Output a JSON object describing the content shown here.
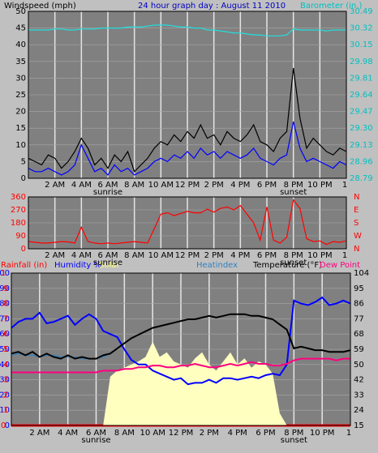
{
  "header": {
    "left_label": "Windspeed (mph)",
    "title": "24 hour graph day : August 11 2010",
    "right_label": "Barometer (in.)"
  },
  "colors": {
    "background": "#c0c0c0",
    "plot": "#808080",
    "grid": "#e6e6e6",
    "wind_axis": "#000000",
    "baro_axis": "#00c0c0",
    "barometer": "#20e0e0",
    "gust": "#000000",
    "wind": "#0000ff",
    "direction": "#ff0000",
    "rain": "#ff0000",
    "humidity": "#0000ff",
    "solar": "#ffffc0",
    "heatindex": "#3080c0",
    "temperature": "#000000",
    "dewpoint": "#ff0080",
    "title": "#0000c0"
  },
  "chart_data": [
    {
      "type": "line",
      "title": "24 hour graph day : August 11 2010",
      "left_axis": {
        "label": "Windspeed (mph)",
        "ticks": [
          "0",
          "5",
          "10",
          "15",
          "20",
          "25",
          "30",
          "35",
          "40",
          "45",
          "50"
        ],
        "ylim": [
          0,
          50
        ]
      },
      "right_axis": {
        "label": "Barometer (in.)",
        "ticks": [
          "28.79",
          "28.96",
          "29.13",
          "29.30",
          "29.47",
          "29.64",
          "29.81",
          "29.98",
          "30.15",
          "30.32",
          "30.49"
        ],
        "ylim": [
          28.79,
          30.49
        ]
      },
      "x_ticks": [
        "2 AM",
        "4 AM",
        "6 AM",
        "8 AM",
        "10 AM",
        "12 PM",
        "2 PM",
        "4 PM",
        "6 PM",
        "8 PM",
        "10 PM"
      ],
      "x_end_tick": "1",
      "sub_labels": [
        {
          "text": "sunrise",
          "hour": 6
        },
        {
          "text": "sunset",
          "hour": 20
        }
      ],
      "hours": [
        0,
        0.5,
        1,
        1.5,
        2,
        2.5,
        3,
        3.5,
        4,
        4.5,
        5,
        5.5,
        6,
        6.5,
        7,
        7.5,
        8,
        8.5,
        9,
        9.5,
        10,
        10.5,
        11,
        11.5,
        12,
        12.5,
        13,
        13.5,
        14,
        14.5,
        15,
        15.5,
        16,
        16.5,
        17,
        17.5,
        18,
        18.5,
        19,
        19.5,
        20,
        20.5,
        21,
        21.5,
        22,
        22.5,
        23,
        23.5,
        24
      ],
      "series": [
        {
          "key": "barometer",
          "axis": "right",
          "values": [
            30.3,
            30.3,
            30.3,
            30.3,
            30.31,
            30.31,
            30.3,
            30.3,
            30.31,
            30.31,
            30.31,
            30.32,
            30.32,
            30.32,
            30.32,
            30.33,
            30.33,
            30.33,
            30.34,
            30.35,
            30.35,
            30.35,
            30.34,
            30.33,
            30.33,
            30.32,
            30.32,
            30.3,
            30.3,
            30.29,
            30.28,
            30.27,
            30.27,
            30.26,
            30.25,
            30.25,
            30.24,
            30.24,
            30.24,
            30.25,
            30.31,
            30.3,
            30.3,
            30.3,
            30.3,
            30.29,
            30.3,
            30.3,
            30.3
          ]
        },
        {
          "key": "gust",
          "axis": "left",
          "values": [
            6,
            5,
            4,
            7,
            6,
            3,
            5,
            8,
            12,
            9,
            4,
            6,
            3,
            7,
            5,
            8,
            2,
            4,
            6,
            9,
            11,
            10,
            13,
            11,
            14,
            12,
            16,
            12,
            13,
            10,
            14,
            12,
            11,
            13,
            16,
            11,
            10,
            8,
            12,
            14,
            33,
            18,
            9,
            12,
            10,
            8,
            7,
            9,
            8
          ]
        },
        {
          "key": "wind",
          "axis": "left",
          "values": [
            3,
            2,
            2,
            3,
            2,
            1,
            2,
            4,
            10,
            6,
            2,
            3,
            1,
            4,
            2,
            3,
            1,
            2,
            3,
            5,
            6,
            5,
            7,
            6,
            8,
            6,
            9,
            7,
            8,
            6,
            8,
            7,
            6,
            7,
            9,
            6,
            5,
            4,
            6,
            7,
            17,
            9,
            5,
            6,
            5,
            4,
            3,
            5,
            4
          ]
        }
      ]
    },
    {
      "type": "line",
      "title": "",
      "left_axis": {
        "label": "",
        "ticks": [
          "0",
          "90",
          "180",
          "270",
          "360"
        ],
        "ylim": [
          0,
          360
        ]
      },
      "right_axis": {
        "label": "",
        "ticks": [
          "N",
          "W",
          "S",
          "E",
          "N"
        ]
      },
      "x_ticks": [
        "2 AM",
        "4 AM",
        "6 AM",
        "8 AM",
        "10 AM",
        "12 PM",
        "2 PM",
        "4 PM",
        "6 PM",
        "8 PM",
        "10 PM"
      ],
      "x_end_tick": "1",
      "sub_labels": [
        {
          "text": "sunrise",
          "hour": 6
        },
        {
          "text": "sunset",
          "hour": 20
        }
      ],
      "hours": [
        0,
        0.5,
        1,
        1.5,
        2,
        2.5,
        3,
        3.5,
        4,
        4.5,
        5,
        5.5,
        6,
        6.5,
        7,
        7.5,
        8,
        8.5,
        9,
        9.5,
        10,
        10.5,
        11,
        11.5,
        12,
        12.5,
        13,
        13.5,
        14,
        14.5,
        15,
        15.5,
        16,
        16.5,
        17,
        17.5,
        18,
        18.5,
        19,
        19.5,
        20,
        20.5,
        21,
        21.5,
        22,
        22.5,
        23,
        23.5,
        24
      ],
      "series": [
        {
          "key": "direction",
          "axis": "left",
          "values": [
            50,
            45,
            40,
            40,
            45,
            50,
            48,
            40,
            150,
            50,
            40,
            35,
            40,
            35,
            40,
            45,
            50,
            45,
            40,
            140,
            240,
            250,
            230,
            245,
            260,
            250,
            250,
            275,
            255,
            280,
            290,
            270,
            300,
            240,
            180,
            60,
            290,
            60,
            40,
            80,
            340,
            280,
            70,
            50,
            55,
            30,
            50,
            45,
            55
          ]
        }
      ]
    },
    {
      "type": "line",
      "title": "",
      "legend": [
        "Rainfall (in)",
        "Humidity %",
        "Solar",
        "Heatindex",
        "Temperature (°F)",
        "Dew Point"
      ],
      "left_axis": {
        "label": "Humidity %",
        "ticks": [
          "0",
          "10",
          "20",
          "30",
          "40",
          "50",
          "60",
          "70",
          "80",
          "90",
          "100"
        ],
        "ylim": [
          0,
          100
        ]
      },
      "rain_axis": {
        "label": "Rainfall (in)",
        "ticks": [
          "0",
          ".1",
          ".2",
          ".3",
          ".4",
          ".5",
          ".6",
          ".7",
          ".8",
          ".9",
          "1"
        ],
        "ylim": [
          0,
          1
        ]
      },
      "right_axis": {
        "label": "Temperature (°F)",
        "ticks": [
          "15",
          "24",
          "33",
          "42",
          "50",
          "59",
          "68",
          "77",
          "86",
          "95",
          "104"
        ],
        "ylim": [
          15,
          104
        ]
      },
      "x_ticks": [
        "2 AM",
        "4 AM",
        "6 AM",
        "8 AM",
        "10 AM",
        "12 PM",
        "2 PM",
        "4 PM",
        "6 PM",
        "8 PM",
        "10 PM"
      ],
      "x_end_tick": "1",
      "sub_labels": [
        {
          "text": "sunrise",
          "hour": 6
        },
        {
          "text": "sunset",
          "hour": 20
        }
      ],
      "hours": [
        0,
        0.5,
        1,
        1.5,
        2,
        2.5,
        3,
        3.5,
        4,
        4.5,
        5,
        5.5,
        6,
        6.5,
        7,
        7.5,
        8,
        8.5,
        9,
        9.5,
        10,
        10.5,
        11,
        11.5,
        12,
        12.5,
        13,
        13.5,
        14,
        14.5,
        15,
        15.5,
        16,
        16.5,
        17,
        17.5,
        18,
        18.5,
        19,
        19.5,
        20,
        20.5,
        21,
        21.5,
        22,
        22.5,
        23,
        23.5,
        24
      ],
      "series": [
        {
          "key": "rain",
          "axis": "rain",
          "values": [
            0,
            0,
            0,
            0,
            0,
            0,
            0,
            0,
            0,
            0,
            0,
            0,
            0,
            0,
            0,
            0,
            0,
            0,
            0,
            0,
            0,
            0,
            0,
            0,
            0,
            0,
            0,
            0,
            0,
            0,
            0,
            0,
            0,
            0,
            0,
            0,
            0,
            0,
            0,
            0,
            0,
            0,
            0,
            0,
            0,
            0,
            0,
            0,
            0
          ]
        },
        {
          "key": "solar",
          "axis": "left",
          "values": [
            0,
            0,
            0,
            0,
            0,
            0,
            0,
            0,
            0,
            0,
            0,
            0,
            0,
            0,
            32,
            36,
            38,
            40,
            42,
            45,
            55,
            45,
            48,
            42,
            40,
            38,
            44,
            48,
            40,
            36,
            42,
            48,
            40,
            44,
            38,
            42,
            40,
            34,
            8,
            0,
            0,
            0,
            0,
            0,
            0,
            0,
            0,
            0,
            0
          ]
        },
        {
          "key": "humidity",
          "axis": "left",
          "values": [
            64,
            68,
            70,
            70,
            74,
            67,
            68,
            70,
            72,
            66,
            70,
            73,
            70,
            62,
            60,
            58,
            50,
            43,
            40,
            40,
            36,
            34,
            32,
            30,
            31,
            27,
            28,
            28,
            30,
            28,
            31,
            31,
            30,
            31,
            32,
            31,
            33,
            34,
            33,
            40,
            82,
            80,
            79,
            81,
            84,
            79,
            80,
            82,
            80
          ]
        },
        {
          "key": "heatindex",
          "axis": "right",
          "values": [
            56,
            57,
            56,
            56,
            55,
            56,
            56,
            55,
            55,
            55,
            54,
            54,
            54,
            55,
            57,
            60,
            63,
            66,
            68,
            70,
            72,
            73,
            74,
            75,
            76,
            77,
            77,
            78,
            79,
            78,
            79,
            80,
            80,
            80,
            79,
            79,
            78,
            77,
            74,
            71,
            60,
            61,
            60,
            59,
            59,
            58,
            58,
            58,
            59
          ]
        },
        {
          "key": "temperature",
          "axis": "right",
          "values": [
            57,
            58,
            56,
            58,
            55,
            57,
            55,
            54,
            56,
            54,
            55,
            54,
            54,
            56,
            57,
            60,
            63,
            66,
            68,
            70,
            72,
            73,
            74,
            75,
            76,
            77,
            77,
            78,
            79,
            78,
            79,
            80,
            80,
            80,
            79,
            79,
            78,
            77,
            74,
            71,
            60,
            61,
            60,
            59,
            59,
            58,
            58,
            58,
            59
          ]
        },
        {
          "key": "dewpoint",
          "axis": "right",
          "values": [
            46,
            46,
            46,
            46,
            46,
            46,
            46,
            46,
            46,
            46,
            46,
            46,
            46,
            47,
            47,
            47,
            48,
            48,
            49,
            49,
            50,
            50,
            49,
            49,
            50,
            50,
            51,
            50,
            49,
            49,
            50,
            51,
            50,
            51,
            52,
            51,
            51,
            50,
            50,
            51,
            53,
            54,
            54,
            54,
            54,
            54,
            53,
            54,
            54
          ]
        }
      ]
    }
  ]
}
